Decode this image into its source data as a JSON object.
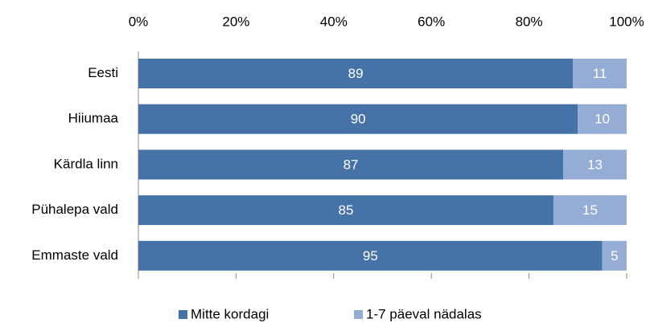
{
  "chart_data": {
    "type": "stacked_bar_horizontal",
    "categories": [
      "Eesti",
      "Hiiumaa",
      "Kärdla linn",
      "Pühalepa vald",
      "Emmaste vald"
    ],
    "series": [
      {
        "name": "Mitte kordagi",
        "color": "#4673a7",
        "values": [
          89,
          90,
          87,
          85,
          95
        ]
      },
      {
        "name": "1-7 päeval nädalas",
        "color": "#95acd4",
        "values": [
          11,
          10,
          13,
          15,
          5
        ]
      }
    ],
    "xlim": [
      0,
      100
    ],
    "xticks": [
      {
        "value": 0,
        "label": "0%"
      },
      {
        "value": 20,
        "label": "20%"
      },
      {
        "value": 40,
        "label": "40%"
      },
      {
        "value": 60,
        "label": "60%"
      },
      {
        "value": 80,
        "label": "80%"
      },
      {
        "value": 100,
        "label": "100%"
      }
    ],
    "legend": "bottom"
  }
}
